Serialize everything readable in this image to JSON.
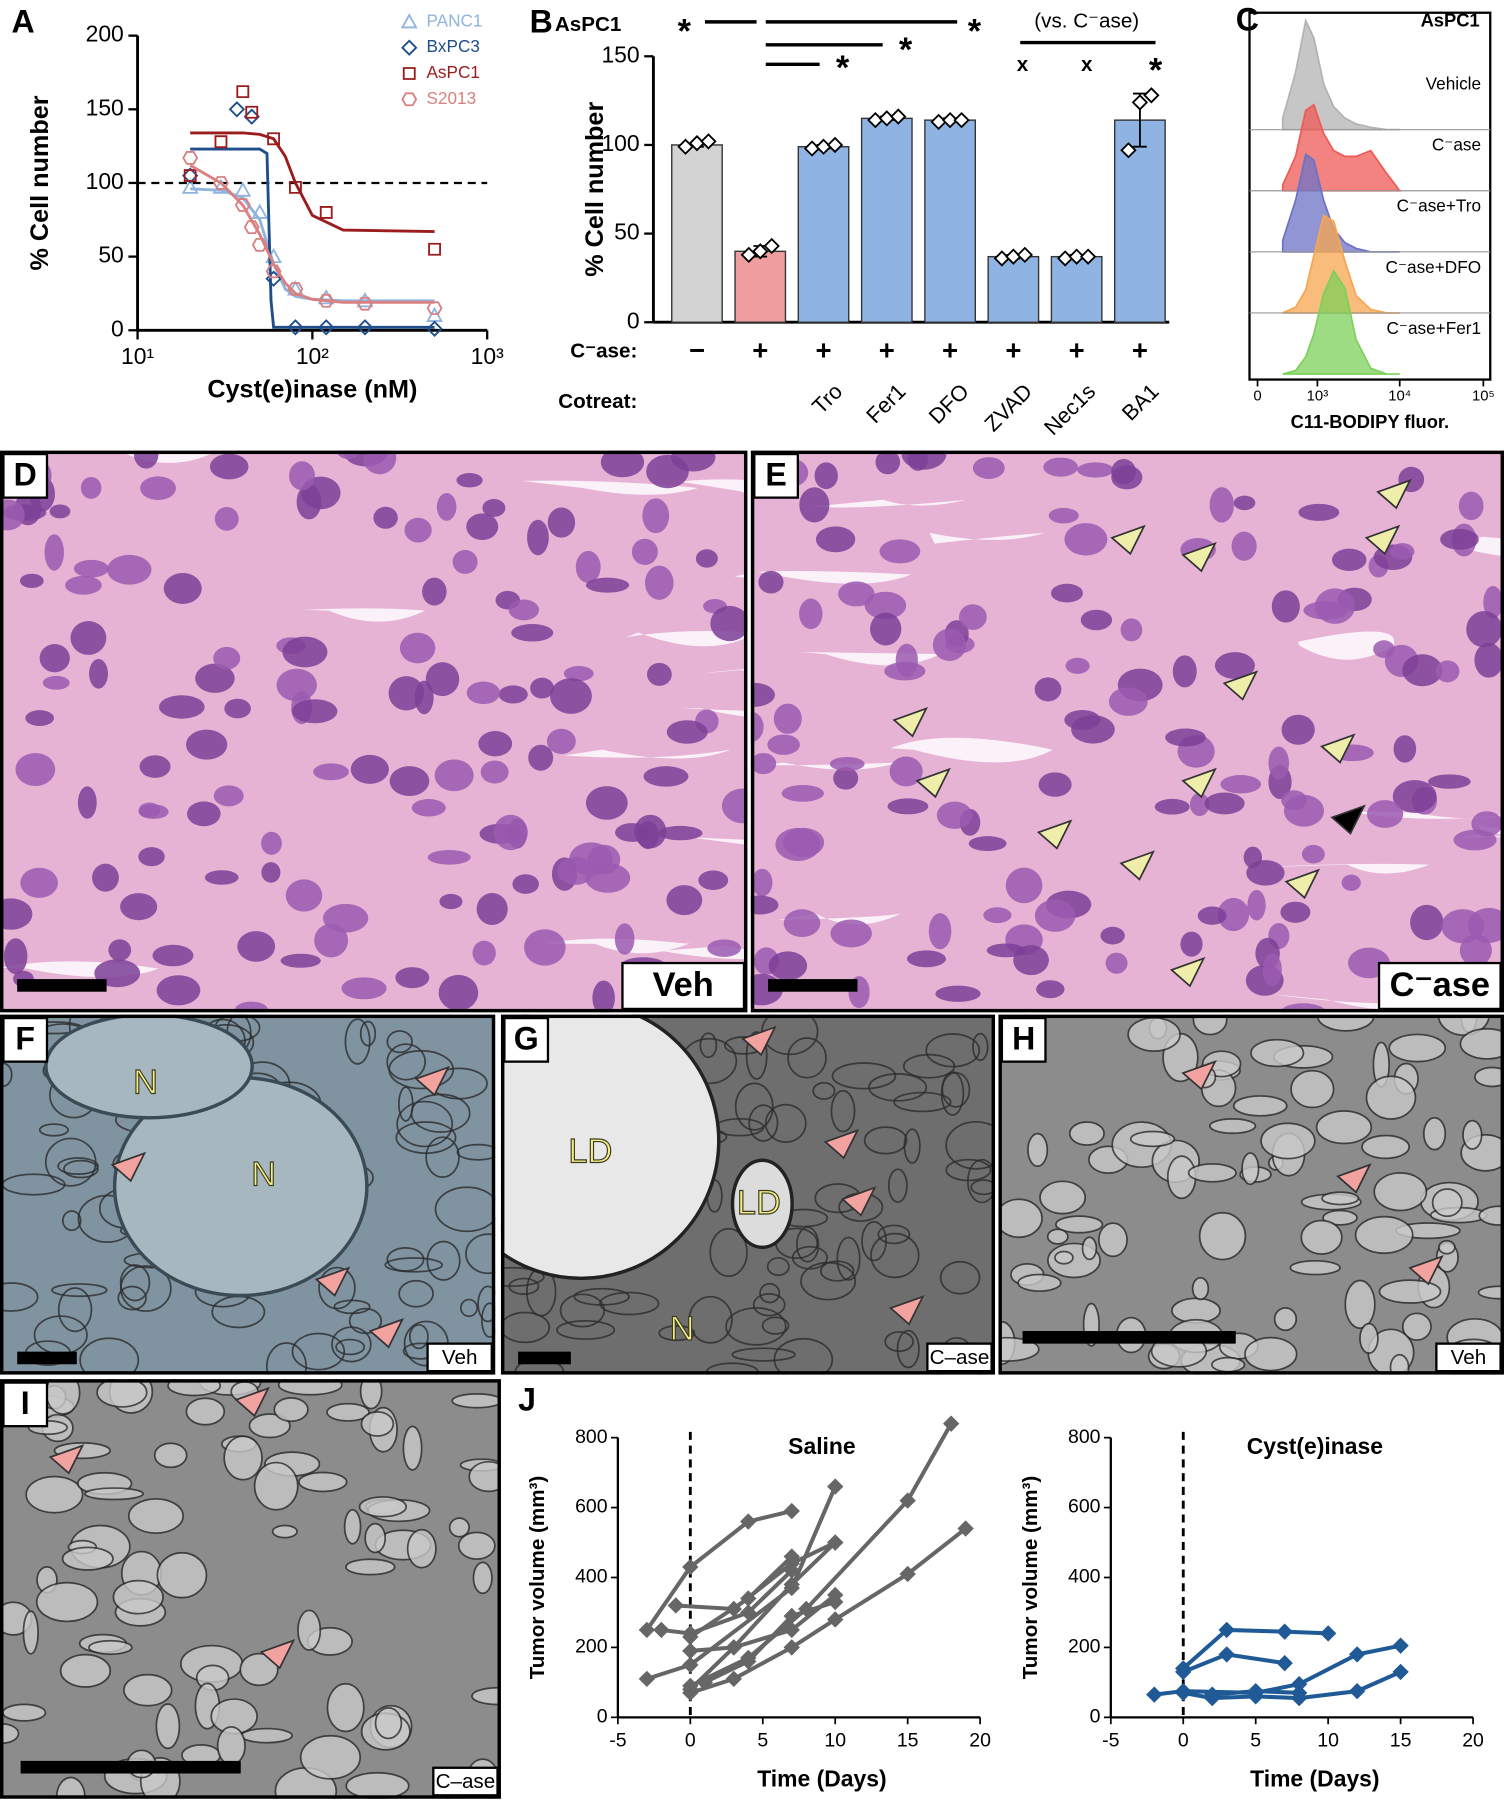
{
  "chart_data": [
    {
      "type": "scatter",
      "label": "A",
      "xlabel": "Cyst(e)inase (nM)",
      "ylabel": "% Cell number",
      "xscale": "log",
      "xlim": [
        10,
        1000
      ],
      "xticks": [
        {
          "value": 10,
          "label": "10¹"
        },
        {
          "value": 100,
          "label": "10²"
        },
        {
          "value": 1000,
          "label": "10³"
        }
      ],
      "ylim": [
        0,
        200
      ],
      "yticks": [
        0,
        50,
        100,
        150,
        200
      ],
      "reference_line": 100,
      "series": [
        {
          "name": "PANC1",
          "color": "#8fb4de",
          "marker": "triangle",
          "x": [
            20,
            30,
            40,
            50,
            60,
            80,
            120,
            200,
            500
          ],
          "values": [
            97,
            97,
            95,
            80,
            50,
            28,
            22,
            20,
            10
          ],
          "fit": {
            "x": [
              20,
              30,
              40,
              50,
              60,
              70,
              80,
              100,
              150,
              500
            ],
            "values": [
              96,
              95,
              90,
              75,
              45,
              28,
              23,
              21,
              20,
              20
            ]
          }
        },
        {
          "name": "BxPC3",
          "color": "#1f4e8c",
          "marker": "diamond",
          "x": [
            20,
            37,
            45,
            60,
            80,
            120,
            200,
            500
          ],
          "values": [
            105,
            150,
            145,
            35,
            2,
            2,
            2,
            1
          ],
          "fit": {
            "x": [
              20,
              30,
              40,
              50,
              55,
              58,
              60,
              80,
              150,
              500
            ],
            "values": [
              123,
              123,
              123,
              123,
              120,
              20,
              2,
              2,
              2,
              2
            ]
          }
        },
        {
          "name": "AsPC1",
          "color": "#9b1c1c",
          "marker": "square",
          "x": [
            20,
            30,
            40,
            45,
            60,
            80,
            120,
            500
          ],
          "values": [
            105,
            128,
            162,
            148,
            130,
            97,
            80,
            55
          ],
          "fit": {
            "x": [
              20,
              30,
              40,
              50,
              60,
              70,
              80,
              100,
              150,
              500
            ],
            "values": [
              134,
              134,
              134,
              133,
              130,
              118,
              100,
              78,
              68,
              67
            ]
          }
        },
        {
          "name": "S2013",
          "color": "#d98080",
          "marker": "hexagon",
          "x": [
            20,
            30,
            40,
            45,
            50,
            60,
            80,
            120,
            200,
            500
          ],
          "values": [
            117,
            100,
            85,
            70,
            58,
            40,
            28,
            20,
            18,
            15
          ],
          "fit": {
            "x": [
              20,
              30,
              40,
              50,
              60,
              70,
              80,
              100,
              150,
              500
            ],
            "values": [
              112,
              100,
              85,
              65,
              45,
              32,
              25,
              21,
              19,
              19
            ]
          }
        }
      ]
    },
    {
      "type": "bar",
      "label": "B",
      "title": "AsPC1",
      "ylabel": "% Cell number",
      "ylim": [
        0,
        150
      ],
      "yticks": [
        0,
        50,
        100,
        150
      ],
      "row_labels": [
        "C⁻ase:",
        "Cotreat:"
      ],
      "treatment": [
        "−",
        "+",
        "+",
        "+",
        "+",
        "+",
        "+",
        "+"
      ],
      "categories": [
        null,
        null,
        "Tro",
        "Fer1",
        "DFO",
        "ZVAD",
        "Nec1s",
        "BA1"
      ],
      "values": [
        100,
        40,
        99,
        115,
        114,
        37,
        37,
        114
      ],
      "errors": [
        1,
        3,
        1,
        1,
        1,
        1,
        1,
        15
      ],
      "points": [
        [
          99,
          101,
          102
        ],
        [
          38,
          40,
          43
        ],
        [
          98,
          99,
          100
        ],
        [
          114,
          115,
          116
        ],
        [
          113,
          114,
          114
        ],
        [
          36,
          37,
          38
        ],
        [
          36,
          37,
          37
        ],
        [
          97,
          124,
          128
        ]
      ],
      "colors": [
        "#d3d3d3",
        "#ee9e9e",
        "#8fb4e3",
        "#8fb4e3",
        "#8fb4e3",
        "#8fb4e3",
        "#8fb4e3",
        "#8fb4e3"
      ],
      "annotations": [
        "*",
        "*",
        "*",
        "*",
        "(vs. C⁻ase)",
        "x",
        "x",
        "*"
      ]
    },
    {
      "type": "ridgeline",
      "label": "C",
      "title": "AsPC1",
      "xlabel": "C11-BODIPY fluor.",
      "xscale": "biexponential",
      "xlim": [
        0,
        100000
      ],
      "xticks": [
        0,
        {
          "value": 1000,
          "label": "10³"
        },
        {
          "value": 10000,
          "label": "10⁴"
        },
        {
          "value": 100000,
          "label": "10⁵"
        }
      ],
      "x": [
        300,
        500,
        700,
        900,
        1200,
        1600,
        2200,
        3000,
        4500,
        7000,
        10000
      ],
      "series": [
        {
          "name": "Vehicle",
          "color": "#b3b3b3",
          "values": [
            0.1,
            0.5,
            0.95,
            0.8,
            0.4,
            0.2,
            0.1,
            0.05,
            0.02,
            0,
            0
          ]
        },
        {
          "name": "C⁻ase",
          "color": "#ee5a55",
          "values": [
            0.05,
            0.3,
            0.7,
            0.75,
            0.5,
            0.35,
            0.3,
            0.3,
            0.35,
            0.15,
            0
          ]
        },
        {
          "name": "C⁻ase+Tro",
          "color": "#6d72c6",
          "values": [
            0.1,
            0.45,
            0.85,
            0.8,
            0.45,
            0.2,
            0.08,
            0.03,
            0,
            0,
            0
          ]
        },
        {
          "name": "C⁻ase+DFO",
          "color": "#f7a54f",
          "values": [
            0,
            0.05,
            0.2,
            0.5,
            0.85,
            0.8,
            0.45,
            0.15,
            0.03,
            0,
            0
          ]
        },
        {
          "name": "C⁻ase+Fer1",
          "color": "#7dd05a",
          "values": [
            0,
            0.03,
            0.15,
            0.35,
            0.7,
            0.9,
            0.75,
            0.3,
            0.05,
            0,
            0
          ]
        }
      ]
    },
    {
      "type": "line",
      "label": "J",
      "title": "Saline",
      "xlabel": "Time (Days)",
      "ylabel": "Tumor volume (mm³)",
      "color": "#666666",
      "xlim": [
        -5,
        20
      ],
      "xticks": [
        -5,
        0,
        5,
        10,
        15,
        20
      ],
      "ylim": [
        0,
        800
      ],
      "yticks": [
        0,
        200,
        400,
        600,
        800
      ],
      "reference_line_x": 0,
      "series": [
        {
          "x": [
            -3,
            0,
            4,
            7
          ],
          "values": [
            250,
            430,
            560,
            590
          ]
        },
        {
          "x": [
            -3,
            0,
            7,
            10
          ],
          "values": [
            110,
            150,
            370,
            660
          ]
        },
        {
          "x": [
            -1,
            3,
            7,
            10
          ],
          "values": [
            320,
            310,
            440,
            500
          ]
        },
        {
          "x": [
            0,
            3,
            7,
            10
          ],
          "values": [
            80,
            200,
            380,
            500
          ]
        },
        {
          "x": [
            -2,
            0,
            4,
            7
          ],
          "values": [
            250,
            240,
            300,
            420
          ]
        },
        {
          "x": [
            0,
            4,
            7
          ],
          "values": [
            230,
            340,
            460
          ]
        },
        {
          "x": [
            0,
            3,
            7,
            10,
            15,
            19
          ],
          "values": [
            70,
            110,
            200,
            280,
            410,
            540
          ]
        },
        {
          "x": [
            0,
            4,
            8,
            15,
            18
          ],
          "values": [
            90,
            170,
            310,
            620,
            840
          ]
        },
        {
          "x": [
            0,
            3,
            7,
            10
          ],
          "values": [
            190,
            200,
            250,
            350
          ]
        },
        {
          "x": [
            1,
            4,
            7,
            10
          ],
          "values": [
            100,
            160,
            290,
            330
          ]
        }
      ]
    },
    {
      "type": "line",
      "title": "Cyst(e)inase",
      "xlabel": "Time (Days)",
      "ylabel": "Tumor volume (mm³)",
      "color": "#1f5a96",
      "xlim": [
        -5,
        20
      ],
      "xticks": [
        -5,
        0,
        5,
        10,
        15,
        20
      ],
      "ylim": [
        0,
        800
      ],
      "yticks": [
        0,
        200,
        400,
        600,
        800
      ],
      "reference_line_x": 0,
      "series": [
        {
          "x": [
            0,
            3,
            7,
            10
          ],
          "values": [
            140,
            250,
            245,
            240
          ]
        },
        {
          "x": [
            0,
            3,
            7
          ],
          "values": [
            130,
            180,
            155
          ]
        },
        {
          "x": [
            -2,
            0,
            5,
            8,
            12,
            15
          ],
          "values": [
            65,
            75,
            70,
            95,
            180,
            205
          ]
        },
        {
          "x": [
            0,
            2,
            5,
            8,
            12,
            15
          ],
          "values": [
            70,
            55,
            60,
            55,
            75,
            130
          ]
        },
        {
          "x": [
            2,
            5,
            8
          ],
          "values": [
            65,
            75,
            70
          ]
        }
      ]
    }
  ],
  "image_panels": [
    {
      "label": "D",
      "caption": "Veh"
    },
    {
      "label": "E",
      "caption": "C⁻ase"
    },
    {
      "label": "F",
      "caption": "Veh",
      "annotations": [
        "N",
        "N"
      ]
    },
    {
      "label": "G",
      "caption": "C–ase",
      "annotations": [
        "LD",
        "LD",
        "N"
      ]
    },
    {
      "label": "H",
      "caption": "Veh"
    },
    {
      "label": "I",
      "caption": "C–ase"
    }
  ]
}
